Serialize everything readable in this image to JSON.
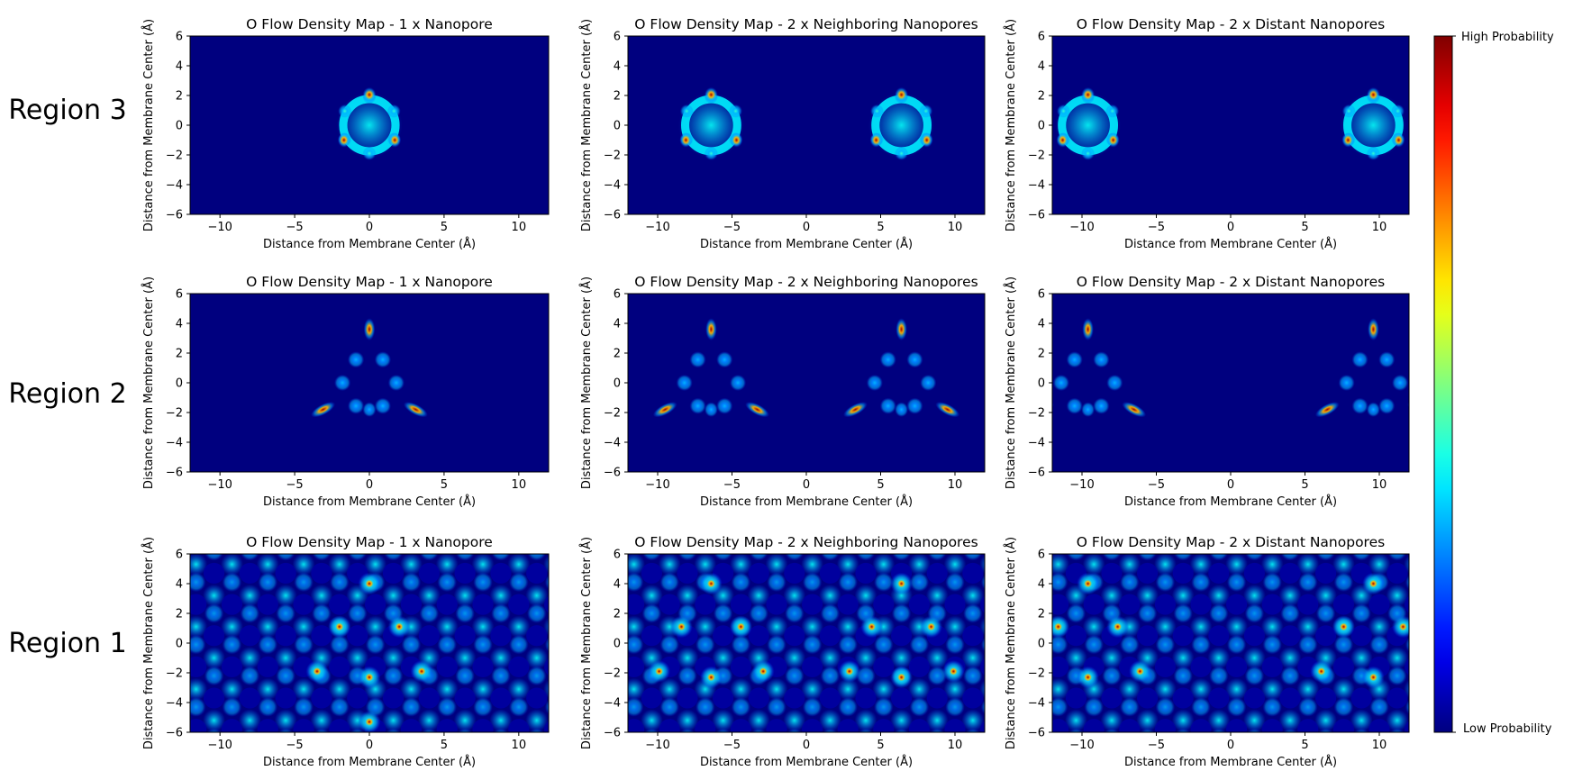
{
  "figure": {
    "colorbar": {
      "high_label": "High Probability",
      "low_label": "Low Probability",
      "colormap": "jet",
      "colormap_stops": [
        "#00007f",
        "#0000ff",
        "#007fff",
        "#00ffff",
        "#7fff7f",
        "#ffff00",
        "#ff7f00",
        "#ff0000",
        "#7f0000"
      ]
    },
    "rows": [
      {
        "label": "Region 3"
      },
      {
        "label": "Region 2"
      },
      {
        "label": "Region 1"
      }
    ]
  },
  "chart_data": [
    {
      "type": "heatmap",
      "region": "Region 3",
      "title": "O Flow Density Map - 1 x Nanopore",
      "xlabel": "Distance from Membrane Center (Å)",
      "ylabel": "Distance from Membrane Center (Å)",
      "xlim": [
        -12,
        12
      ],
      "ylim": [
        -6,
        6
      ],
      "xticks": [
        -10,
        -5,
        0,
        5,
        10
      ],
      "yticks": [
        -6,
        -4,
        -2,
        0,
        2,
        4,
        6
      ],
      "pores_x": [
        0
      ]
    },
    {
      "type": "heatmap",
      "region": "Region 3",
      "title": "O Flow Density Map - 2 x Neighboring Nanopores",
      "xlabel": "Distance from Membrane Center (Å)",
      "ylabel": "Distance from Membrane Center (Å)",
      "xlim": [
        -12,
        12
      ],
      "ylim": [
        -6,
        6
      ],
      "xticks": [
        -10,
        -5,
        0,
        5,
        10
      ],
      "yticks": [
        -6,
        -4,
        -2,
        0,
        2,
        4,
        6
      ],
      "pores_x": [
        -6.4,
        6.4
      ]
    },
    {
      "type": "heatmap",
      "region": "Region 3",
      "title": "O Flow Density Map - 2 x Distant Nanopores",
      "xlabel": "Distance from Membrane Center (Å)",
      "ylabel": "Distance from Membrane Center (Å)",
      "xlim": [
        -12,
        12
      ],
      "ylim": [
        -6,
        6
      ],
      "xticks": [
        -10,
        -5,
        0,
        5,
        10
      ],
      "yticks": [
        -6,
        -4,
        -2,
        0,
        2,
        4,
        6
      ],
      "pores_x": [
        -9.6,
        9.6
      ]
    },
    {
      "type": "heatmap",
      "region": "Region 2",
      "title": "O Flow Density Map - 1 x Nanopore",
      "xlabel": "Distance from Membrane Center (Å)",
      "ylabel": "Distance from Membrane Center (Å)",
      "xlim": [
        -12,
        12
      ],
      "ylim": [
        -6,
        6
      ],
      "xticks": [
        -10,
        -5,
        0,
        5,
        10
      ],
      "yticks": [
        -6,
        -4,
        -2,
        0,
        2,
        4,
        6
      ],
      "pores_x": [
        0
      ]
    },
    {
      "type": "heatmap",
      "region": "Region 2",
      "title": "O Flow Density Map - 2 x Neighboring Nanopores",
      "xlabel": "Distance from Membrane Center (Å)",
      "ylabel": "Distance from Membrane Center (Å)",
      "xlim": [
        -12,
        12
      ],
      "ylim": [
        -6,
        6
      ],
      "xticks": [
        -10,
        -5,
        0,
        5,
        10
      ],
      "yticks": [
        -6,
        -4,
        -2,
        0,
        2,
        4,
        6
      ],
      "pores_x": [
        -6.4,
        6.4
      ]
    },
    {
      "type": "heatmap",
      "region": "Region 2",
      "title": "O Flow Density Map - 2 x Distant Nanopores",
      "xlabel": "Distance from Membrane Center (Å)",
      "ylabel": "Distance from Membrane Center (Å)",
      "xlim": [
        -12,
        12
      ],
      "ylim": [
        -6,
        6
      ],
      "xticks": [
        -10,
        -5,
        0,
        5,
        10
      ],
      "yticks": [
        -6,
        -4,
        -2,
        0,
        2,
        4,
        6
      ],
      "pores_x": [
        -9.6,
        9.6
      ]
    },
    {
      "type": "heatmap",
      "region": "Region 1",
      "title": "O Flow Density Map - 1 x Nanopore",
      "xlabel": "Distance from Membrane Center (Å)",
      "ylabel": "Distance from Membrane Center (Å)",
      "xlim": [
        -12,
        12
      ],
      "ylim": [
        -6,
        6
      ],
      "xticks": [
        -10,
        -5,
        0,
        5,
        10
      ],
      "yticks": [
        -6,
        -4,
        -2,
        0,
        2,
        4,
        6
      ],
      "hotspots": [
        [
          0,
          4
        ],
        [
          -2,
          1.1
        ],
        [
          2,
          1.1
        ],
        [
          -3.5,
          -1.9
        ],
        [
          3.5,
          -1.9
        ],
        [
          0,
          -2.3
        ],
        [
          0,
          -5.3
        ]
      ]
    },
    {
      "type": "heatmap",
      "region": "Region 1",
      "title": "O Flow Density Map - 2 x Neighboring Nanopores",
      "xlabel": "Distance from Membrane Center (Å)",
      "ylabel": "Distance from Membrane Center (Å)",
      "xlim": [
        -12,
        12
      ],
      "ylim": [
        -6,
        6
      ],
      "xticks": [
        -10,
        -5,
        0,
        5,
        10
      ],
      "yticks": [
        -6,
        -4,
        -2,
        0,
        2,
        4,
        6
      ],
      "hotspots": [
        [
          -6.4,
          4
        ],
        [
          6.4,
          4
        ],
        [
          -8.4,
          1.1
        ],
        [
          -4.4,
          1.1
        ],
        [
          4.4,
          1.1
        ],
        [
          8.4,
          1.1
        ],
        [
          -9.9,
          -1.9
        ],
        [
          -2.9,
          -1.9
        ],
        [
          2.9,
          -1.9
        ],
        [
          9.9,
          -1.9
        ],
        [
          -6.4,
          -2.3
        ],
        [
          6.4,
          -2.3
        ]
      ]
    },
    {
      "type": "heatmap",
      "region": "Region 1",
      "title": "O Flow Density Map - 2 x Distant Nanopores",
      "xlabel": "Distance from Membrane Center (Å)",
      "ylabel": "Distance from Membrane Center (Å)",
      "xlim": [
        -12,
        12
      ],
      "ylim": [
        -6,
        6
      ],
      "xticks": [
        -10,
        -5,
        0,
        5,
        10
      ],
      "yticks": [
        -6,
        -4,
        -2,
        0,
        2,
        4,
        6
      ],
      "hotspots": [
        [
          -9.6,
          4
        ],
        [
          9.6,
          4
        ],
        [
          -11.6,
          1.1
        ],
        [
          -7.6,
          1.1
        ],
        [
          7.6,
          1.1
        ],
        [
          11.6,
          1.1
        ],
        [
          -6.1,
          -1.9
        ],
        [
          6.1,
          -1.9
        ],
        [
          -9.6,
          -2.3
        ],
        [
          9.6,
          -2.3
        ]
      ]
    }
  ]
}
